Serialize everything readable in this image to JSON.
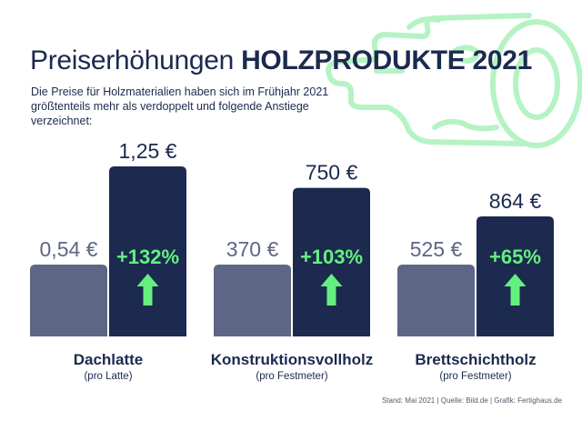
{
  "title": {
    "regular": "Preiserhöhungen",
    "bold": "HOLZPRODUKTE 2021"
  },
  "subtitle": "Die Preise für Holzmaterialien haben sich im Frühjahr 2021 größtenteils mehr als verdoppelt und folgende Anstiege verzeichnet:",
  "footer": "Stand: Mai 2021 | Quelle: Bild.de | Grafik: Fertighaus.de",
  "colors": {
    "old_bar": "#5e6686",
    "new_bar": "#1b2a4e",
    "accent_green": "#64f07f",
    "old_label": "#5e6686",
    "text_dark": "#1b2a4e",
    "log_stroke": "#b5f3c4"
  },
  "decoration": {
    "icon": "wood-log-icon"
  },
  "chart_data": {
    "type": "bar",
    "categories": [
      "Dachlatte",
      "Konstruktionsvollholz",
      "Brettschichtholz"
    ],
    "units": [
      "(pro Latte)",
      "(pro Festmeter)",
      "(pro Festmeter)"
    ],
    "series": [
      {
        "values": [
          0.54,
          370,
          525
        ],
        "labels": [
          "0,54 €",
          "370 €",
          "525 €"
        ]
      },
      {
        "values": [
          1.25,
          750,
          864
        ],
        "labels": [
          "1,25 €",
          "750 €",
          "864 €"
        ]
      }
    ],
    "changes": [
      "+132%",
      "+103%",
      "+65%"
    ]
  }
}
